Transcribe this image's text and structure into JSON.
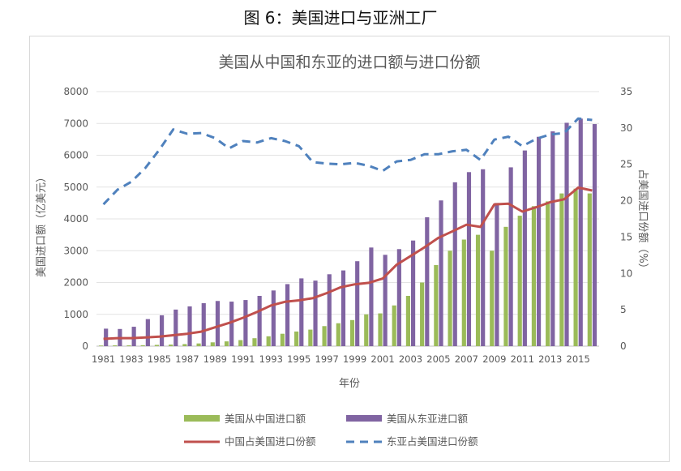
{
  "caption": "图 6：美国进口与亚洲工厂",
  "chart_data": {
    "type": "bar",
    "title": "美国从中国和东亚的进口额与进口份额",
    "xlabel": "年份",
    "ylabel": "美国进口额（亿美元）",
    "y2label": "占美国进口份额（%）",
    "ylim": [
      0,
      8000
    ],
    "y2lim": [
      0,
      35
    ],
    "yticks": [
      "0",
      "1000",
      "2000",
      "3000",
      "4000",
      "5000",
      "6000",
      "7000",
      "8000"
    ],
    "y2ticks": [
      "0",
      "5",
      "10",
      "15",
      "20",
      "25",
      "30",
      "35"
    ],
    "categories": [
      1981,
      1982,
      1983,
      1984,
      1985,
      1986,
      1987,
      1988,
      1989,
      1990,
      1991,
      1992,
      1993,
      1994,
      1995,
      1996,
      1997,
      1998,
      1999,
      2000,
      2001,
      2002,
      2003,
      2004,
      2005,
      2006,
      2007,
      2008,
      2009,
      2010,
      2011,
      2012,
      2013,
      2014,
      2015,
      2016
    ],
    "xtick_labels": [
      "1981",
      "1983",
      "1985",
      "1987",
      "1989",
      "1991",
      "1993",
      "1995",
      "1997",
      "1999",
      "2001",
      "2003",
      "2005",
      "2007",
      "2009",
      "2011",
      "2013",
      "2015"
    ],
    "series": [
      {
        "name": "美国从中国进口额",
        "kind": "bar",
        "axis": "left",
        "color": "#9bbb59",
        "values": [
          20,
          25,
          25,
          30,
          40,
          50,
          65,
          85,
          120,
          150,
          190,
          250,
          310,
          390,
          460,
          520,
          630,
          720,
          820,
          1000,
          1030,
          1280,
          1580,
          2000,
          2550,
          3000,
          3350,
          3500,
          3000,
          3750,
          4100,
          4400,
          4550,
          4800,
          4950,
          4800
        ]
      },
      {
        "name": "美国从东亚进口额",
        "kind": "bar",
        "axis": "left",
        "color": "#8064a2",
        "values": [
          550,
          540,
          610,
          850,
          970,
          1150,
          1250,
          1350,
          1420,
          1400,
          1450,
          1580,
          1750,
          1950,
          2130,
          2060,
          2260,
          2380,
          2670,
          3100,
          2870,
          3050,
          3320,
          4050,
          4580,
          5150,
          5470,
          5560,
          4500,
          5620,
          6150,
          6580,
          6750,
          7020,
          7150,
          6980
        ]
      },
      {
        "name": "中国占美国进口份额",
        "kind": "line",
        "axis": "right",
        "color": "#c0504d",
        "values": [
          1.0,
          1.1,
          1.1,
          1.2,
          1.3,
          1.5,
          1.7,
          2.0,
          2.6,
          3.2,
          3.9,
          4.7,
          5.6,
          6.1,
          6.3,
          6.6,
          7.3,
          8.1,
          8.5,
          8.7,
          9.3,
          11.2,
          12.4,
          13.6,
          14.9,
          15.8,
          16.7,
          16.4,
          19.5,
          19.6,
          18.5,
          19.1,
          19.8,
          20.2,
          21.8,
          21.4
        ]
      },
      {
        "name": "东亚占美国进口份额",
        "kind": "line",
        "axis": "right",
        "dash": true,
        "color": "#4f81bd",
        "values": [
          19.5,
          21.5,
          22.6,
          24.5,
          27.0,
          29.8,
          29.2,
          29.3,
          28.6,
          27.2,
          28.2,
          28.0,
          28.6,
          28.2,
          27.5,
          25.3,
          25.1,
          25.0,
          25.2,
          24.8,
          24.1,
          25.4,
          25.6,
          26.4,
          26.4,
          26.8,
          27.0,
          25.6,
          28.4,
          28.8,
          27.5,
          28.5,
          29.1,
          29.3,
          31.3,
          31.1
        ]
      }
    ],
    "legend": [
      {
        "label": "美国从中国进口额",
        "marker": "bar",
        "color": "#9bbb59"
      },
      {
        "label": "美国从东亚进口额",
        "marker": "bar",
        "color": "#8064a2"
      },
      {
        "label": "中国占美国进口份额",
        "marker": "line",
        "color": "#c0504d"
      },
      {
        "label": "东亚占美国进口份额",
        "marker": "dash",
        "color": "#4f81bd"
      }
    ],
    "legend_position": "bottom",
    "grid": true
  }
}
